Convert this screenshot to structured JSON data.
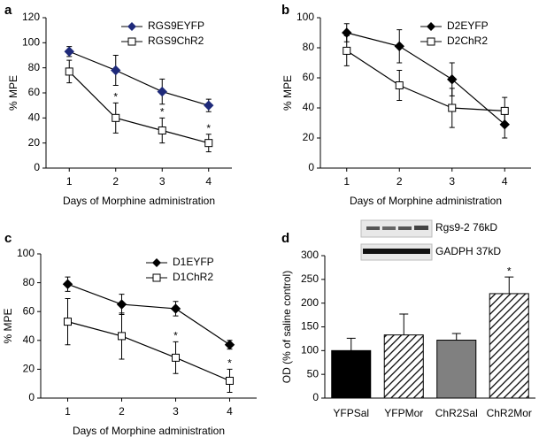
{
  "chart_data": [
    {
      "type": "line",
      "label": "a",
      "xlabel": "Days of Morphine administration",
      "ylabel": "% MPE",
      "x": [
        1,
        2,
        3,
        4
      ],
      "xlim": [
        0.5,
        4.5
      ],
      "xticks": [
        1,
        2,
        3,
        4
      ],
      "ylim": [
        0,
        120
      ],
      "yticks": [
        0,
        20,
        40,
        60,
        80,
        100,
        120
      ],
      "legend": "upper right",
      "series": [
        {
          "name": "RGS9EYFP",
          "color": "#1f2a7a",
          "marker": "diamond",
          "values": [
            93,
            78,
            61,
            50
          ],
          "errors": [
            4,
            12,
            10,
            5
          ],
          "significance": [
            null,
            null,
            null,
            null
          ]
        },
        {
          "name": "RGS9ChR2",
          "color": "#000000",
          "marker": "square",
          "values": [
            77,
            40,
            30,
            20
          ],
          "errors": [
            9,
            12,
            10,
            7
          ],
          "significance": [
            null,
            "*",
            "*",
            "*"
          ]
        }
      ]
    },
    {
      "type": "line",
      "label": "b",
      "xlabel": "Days of Morphine administration",
      "ylabel": "% MPE",
      "x": [
        1,
        2,
        3,
        4
      ],
      "xlim": [
        0.5,
        4.5
      ],
      "xticks": [
        1,
        2,
        3,
        4
      ],
      "ylim": [
        0,
        100
      ],
      "yticks": [
        0,
        20,
        40,
        60,
        80,
        100
      ],
      "legend": "upper right",
      "series": [
        {
          "name": "D2EYFP",
          "color": "#000000",
          "marker": "diamond",
          "values": [
            90,
            81,
            59,
            29
          ],
          "errors": [
            6,
            11,
            11,
            9
          ],
          "significance": [
            null,
            null,
            null,
            null
          ]
        },
        {
          "name": "D2ChR2",
          "color": "#000000",
          "marker": "square",
          "values": [
            78,
            55,
            40,
            38
          ],
          "errors": [
            10,
            10,
            13,
            9
          ],
          "significance": [
            null,
            null,
            null,
            null
          ]
        }
      ]
    },
    {
      "type": "line",
      "label": "c",
      "xlabel": "Days of Morphine administration",
      "ylabel": "% MPE",
      "x": [
        1,
        2,
        3,
        4
      ],
      "xlim": [
        0.5,
        4.5
      ],
      "xticks": [
        1,
        2,
        3,
        4
      ],
      "ylim": [
        0,
        100
      ],
      "yticks": [
        0,
        20,
        40,
        60,
        80,
        100
      ],
      "legend": "upper right",
      "series": [
        {
          "name": "D1EYFP",
          "color": "#000000",
          "marker": "diamond",
          "values": [
            79,
            65,
            62,
            37
          ],
          "errors": [
            5,
            7,
            5,
            3
          ],
          "significance": [
            null,
            null,
            null,
            null
          ]
        },
        {
          "name": "D1ChR2",
          "color": "#000000",
          "marker": "square",
          "values": [
            53,
            43,
            28,
            12
          ],
          "errors": [
            16,
            16,
            11,
            8
          ],
          "significance": [
            null,
            null,
            "*",
            "*"
          ]
        }
      ]
    },
    {
      "type": "bar",
      "label": "d",
      "ylabel": "OD (% of saline control)",
      "blot_labels": [
        "Rgs9-2 76kD",
        "GADPH 37kD"
      ],
      "categories": [
        "YFPSal",
        "YFPMor",
        "ChR2Sal",
        "ChR2Mor"
      ],
      "values": [
        100,
        133,
        122,
        220
      ],
      "errors": [
        26,
        44,
        14,
        35
      ],
      "colors": [
        "#000000",
        "#ffffff",
        "#808080",
        "#ffffff"
      ],
      "hatched": [
        false,
        true,
        false,
        true
      ],
      "significance": [
        null,
        null,
        null,
        "*"
      ],
      "ylim": [
        0,
        300
      ],
      "yticks": [
        0,
        50,
        100,
        150,
        200,
        250,
        300
      ]
    }
  ]
}
